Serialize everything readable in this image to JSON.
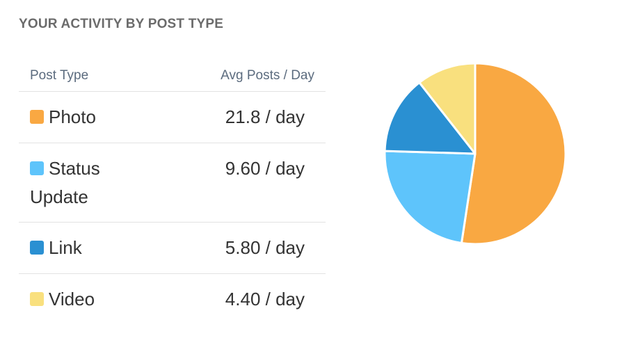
{
  "title": "YOUR ACTIVITY BY POST TYPE",
  "table": {
    "col_type": "Post Type",
    "col_avg": "Avg Posts / Day",
    "rows": [
      {
        "label": "Photo",
        "value": "21.8 / day",
        "color": "#F9A842"
      },
      {
        "label": "Status Update",
        "value": "9.60 / day",
        "color": "#5EC4FB"
      },
      {
        "label": "Link",
        "value": "5.80 / day",
        "color": "#2A90D2"
      },
      {
        "label": "Video",
        "value": "4.40 / day",
        "color": "#F9E07E"
      }
    ]
  },
  "chart_data": {
    "type": "pie",
    "title": "YOUR ACTIVITY BY POST TYPE",
    "categories": [
      "Photo",
      "Status Update",
      "Link",
      "Video"
    ],
    "values": [
      21.8,
      9.6,
      5.8,
      4.4
    ],
    "colors": [
      "#F9A842",
      "#5EC4FB",
      "#2A90D2",
      "#F9E07E"
    ],
    "unit": "posts / day"
  }
}
